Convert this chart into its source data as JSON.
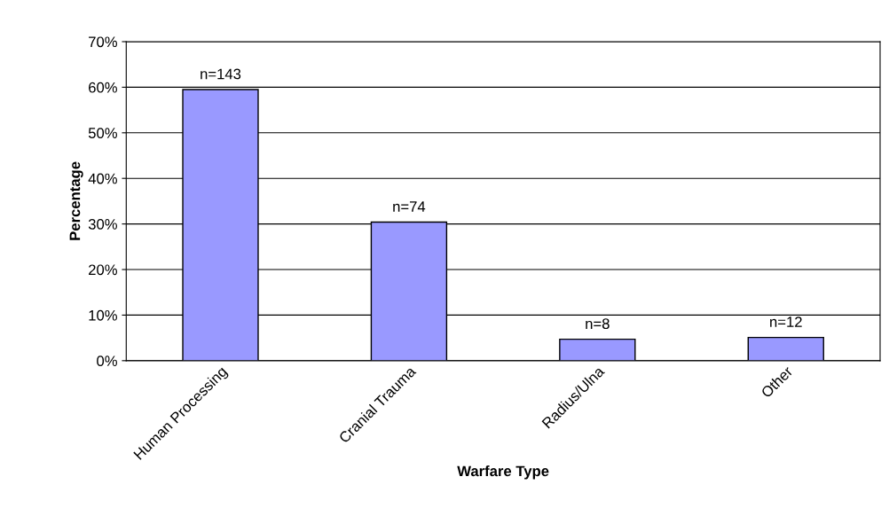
{
  "chart_data": {
    "type": "bar",
    "xlabel": "Warfare Type",
    "ylabel": "Percentage",
    "categories": [
      "Human Processing",
      "Cranial Trauma",
      "Radius/Ulna",
      "Other"
    ],
    "values": [
      59.5,
      30.4,
      4.7,
      5.1
    ],
    "annotations": [
      {
        "text": "n=143",
        "x": "Human Processing",
        "y": 59.5
      },
      {
        "text": "n=74",
        "x": "Cranial Trauma",
        "y": 30.4
      },
      {
        "text": "n=8",
        "x": "Radius/Ulna",
        "y": 4.7
      },
      {
        "text": "n=12",
        "x": "Other",
        "y": 5.1
      }
    ],
    "color": "#9999ff",
    "ylim": [
      0,
      70
    ],
    "yticks": [
      {
        "value": 0,
        "label": "0%"
      },
      {
        "value": 10,
        "label": "10%"
      },
      {
        "value": 20,
        "label": "20%"
      },
      {
        "value": 30,
        "label": "30%"
      },
      {
        "value": 40,
        "label": "40%"
      },
      {
        "value": 50,
        "label": "50%"
      },
      {
        "value": 60,
        "label": "60%"
      },
      {
        "value": 70,
        "label": "70%"
      }
    ],
    "grid": "y",
    "legend": false
  }
}
